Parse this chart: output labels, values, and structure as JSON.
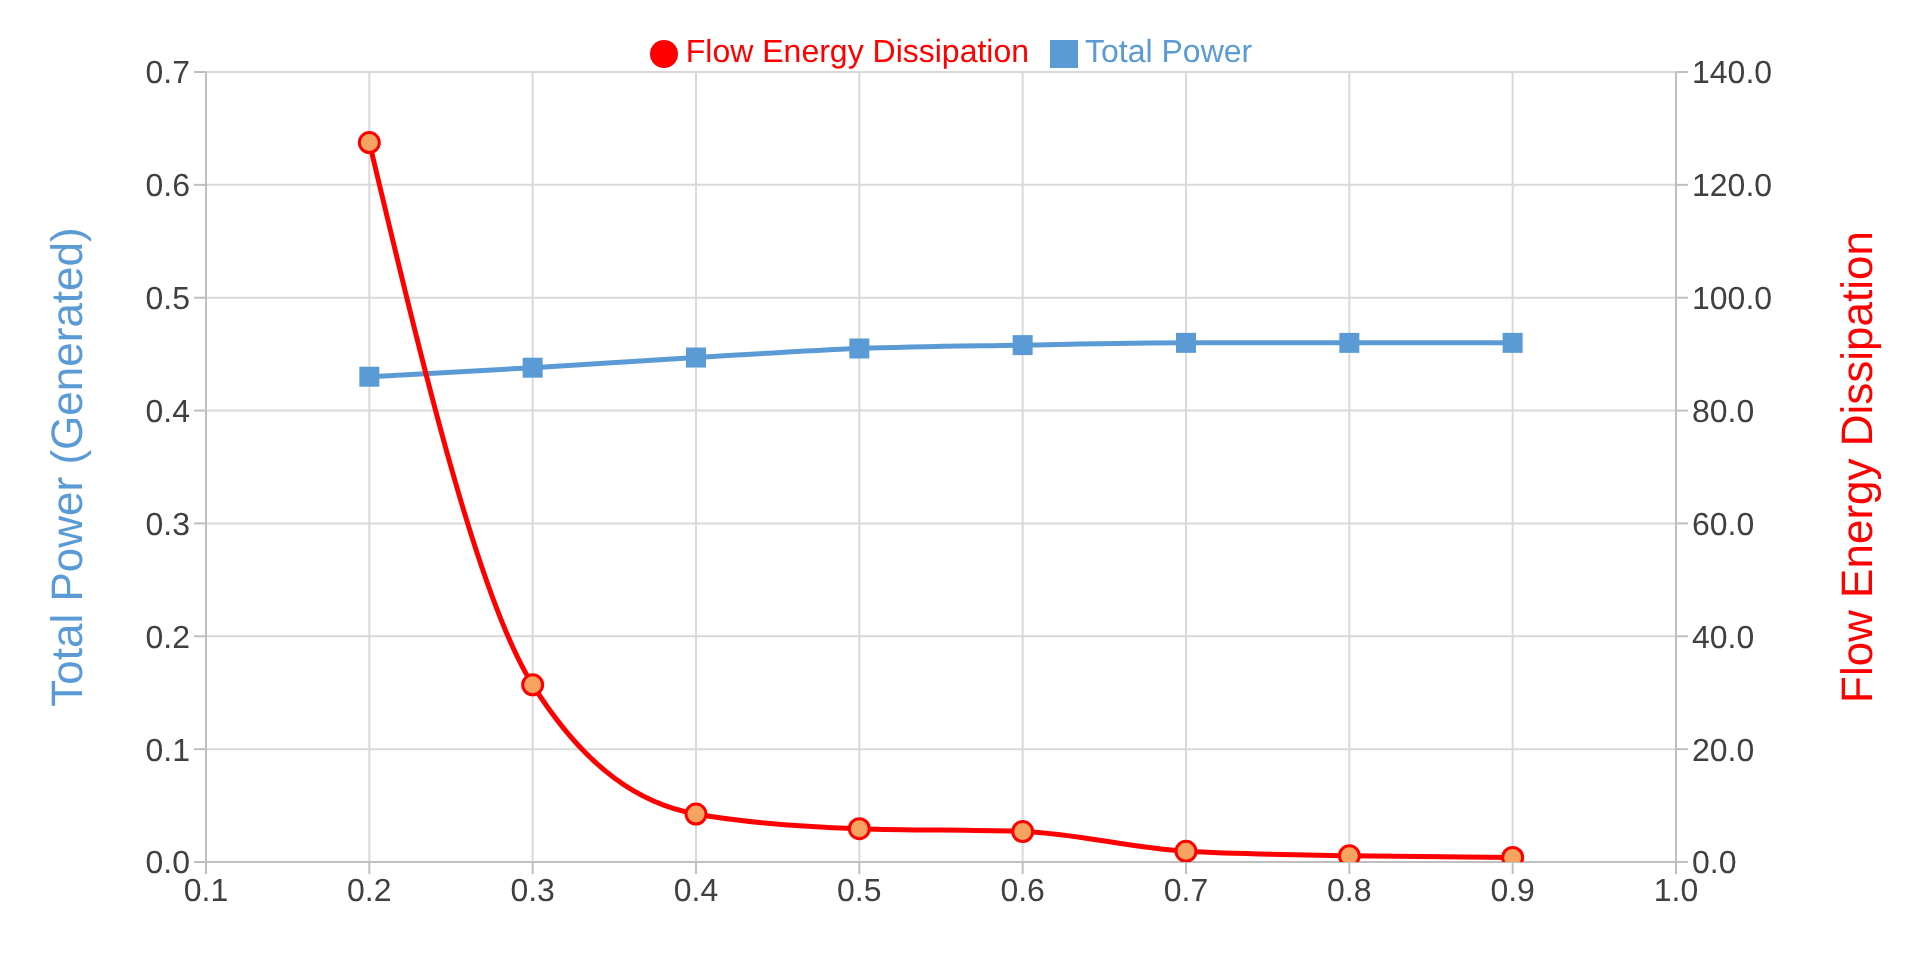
{
  "chart_data": {
    "type": "line",
    "xlabel": null,
    "ylabel": "Total Power (Generated)",
    "y2label": "Flow Energy Dissipation",
    "x": [
      0.2,
      0.3,
      0.4,
      0.5,
      0.6,
      0.7,
      0.8,
      0.9
    ],
    "series": [
      {
        "name": "Total Power",
        "color": "#5b9bd5",
        "marker": "square",
        "values": [
          0.43,
          0.438,
          0.447,
          0.455,
          0.458,
          0.46,
          0.46,
          0.46
        ]
      },
      {
        "name": "Flow Energy Dissipation",
        "color": "#ff0000",
        "marker": "circle",
        "axis": "y2",
        "values": [
          127.5,
          31.4,
          8.5,
          5.9,
          5.4,
          1.9,
          1.1,
          0.8
        ]
      }
    ],
    "xlim": [
      0.1,
      1.0
    ],
    "xticks": [
      0.1,
      0.2,
      0.3,
      0.4,
      0.5,
      0.6,
      0.7,
      0.8,
      0.9,
      {
        "value": 1.0,
        "label": "1.0"
      }
    ],
    "ylim": [
      0,
      0.7
    ],
    "yticks": [
      {
        "value": 0,
        "label": "0.0"
      },
      0.1,
      0.2,
      0.3,
      0.4,
      0.5,
      0.6,
      0.7
    ],
    "y2lim": [
      0,
      140
    ],
    "y2ticks": [
      {
        "value": 0,
        "label": "0.0"
      },
      {
        "value": 20,
        "label": "20.0"
      },
      {
        "value": 40,
        "label": "40.0"
      },
      {
        "value": 60,
        "label": "60.0"
      },
      {
        "value": 80,
        "label": "80.0"
      },
      {
        "value": 100,
        "label": "100.0"
      },
      {
        "value": 120,
        "label": "120.0"
      },
      {
        "value": 140,
        "label": "140.0"
      }
    ],
    "grid": true,
    "legend": "top",
    "line_style": "solid"
  }
}
